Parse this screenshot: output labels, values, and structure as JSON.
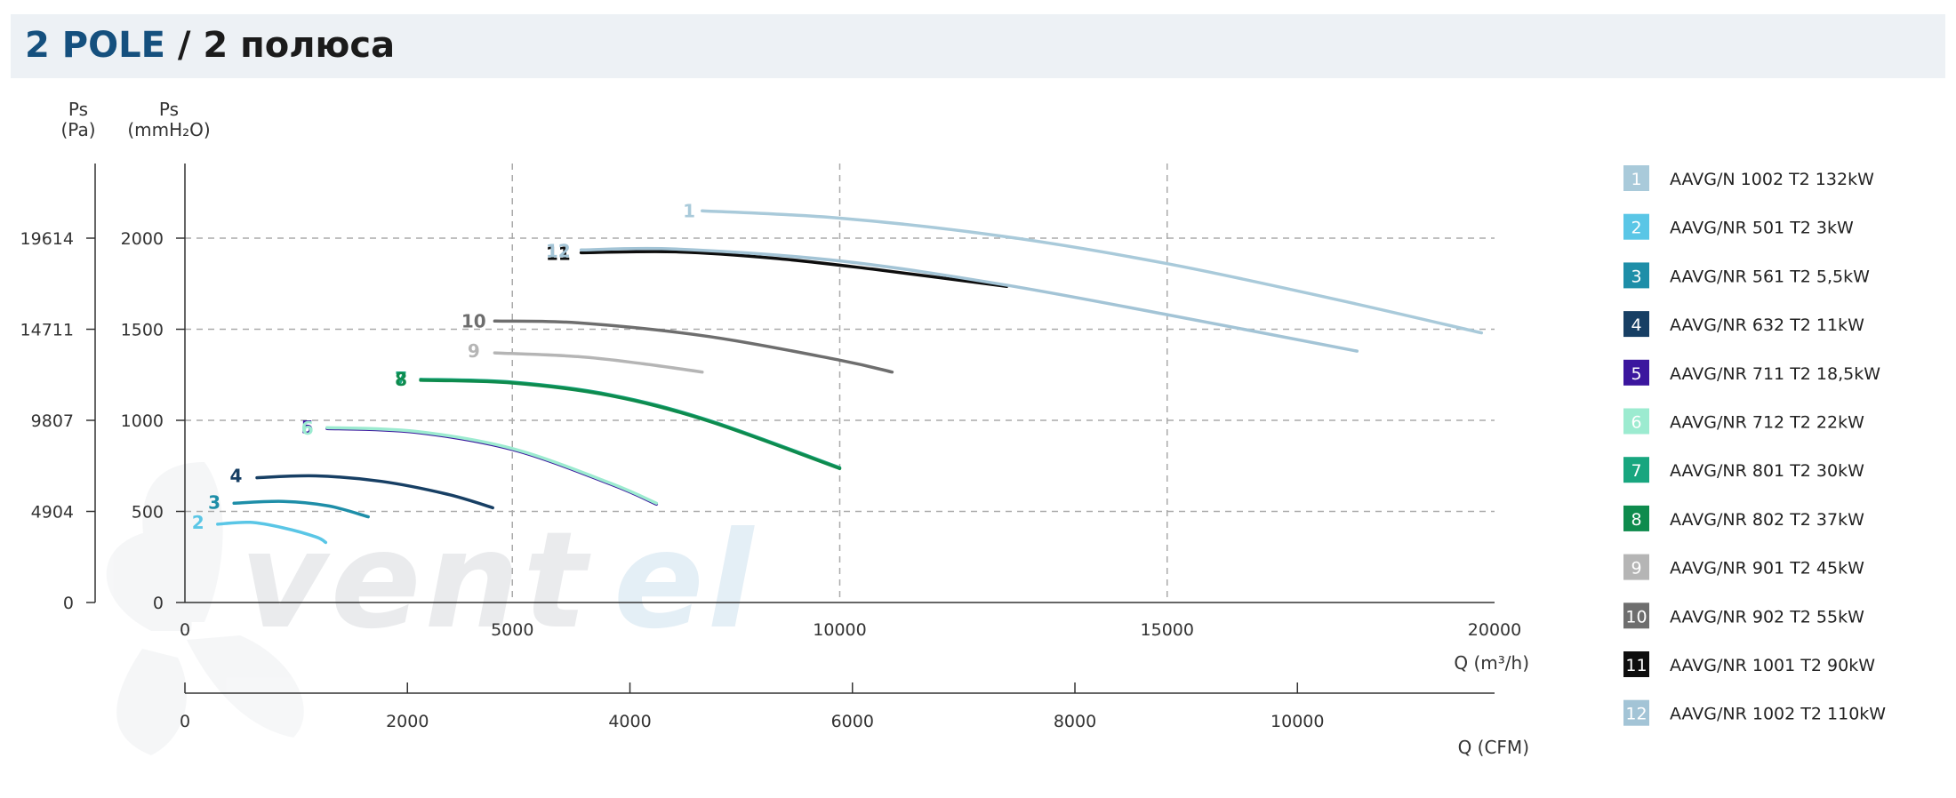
{
  "header": {
    "title_en": "2 POLE",
    "title_sep": " / ",
    "title_ru": "2 полюса"
  },
  "colors": {
    "header_bg": "#edf1f5",
    "header_accent": "#15507e",
    "grid": "#aaaaaa",
    "axis": "#333333"
  },
  "watermark": "ventel",
  "chart_data": {
    "type": "line",
    "x_axis": {
      "label": "Q (m³/h)",
      "ticks": [
        0,
        5000,
        10000,
        15000,
        20000
      ],
      "range": [
        0,
        20000
      ]
    },
    "x2_axis": {
      "label": "Q (CFM)",
      "ticks": [
        0,
        2000,
        4000,
        6000,
        8000,
        10000
      ],
      "range": [
        0,
        11772
      ]
    },
    "y_axis": {
      "label": "Ps (mmH₂O)",
      "label_top": "Ps",
      "label_unit": "(mmH₂O)",
      "ticks": [
        0,
        500,
        1000,
        1500,
        2000
      ],
      "range": [
        0,
        2400
      ]
    },
    "y2_axis": {
      "label": "Ps (Pa)",
      "label_top": "Ps",
      "label_unit": "(Pa)",
      "ticks": [
        "0",
        "4904",
        "9807",
        "14711",
        "19614"
      ],
      "tick_values": [
        0,
        500,
        1000,
        1500,
        2000
      ]
    },
    "grid": {
      "vertical": [
        5000,
        10000,
        15000
      ],
      "horizontal": [
        500,
        1000,
        1500,
        2000
      ],
      "style": "dashed"
    },
    "series": [
      {
        "id": "1",
        "name": "AAVG/N 1002 T2 132kW",
        "color": "#a9cada",
        "label_x": 7700,
        "label_y": 2150,
        "x": [
          7900,
          10000,
          12500,
          15000,
          17500,
          19800
        ],
        "y": [
          2150,
          2110,
          2010,
          1860,
          1670,
          1480
        ]
      },
      {
        "id": "2",
        "name": "AAVG/NR 501 T2 3kW",
        "color": "#5ac6e6",
        "label_x": 200,
        "label_y": 440,
        "x": [
          500,
          1000,
          1500,
          2000,
          2150
        ],
        "y": [
          430,
          440,
          410,
          360,
          330
        ]
      },
      {
        "id": "3",
        "name": "AAVG/NR 561 T2 5,5kW",
        "color": "#1e8ea8",
        "label_x": 450,
        "label_y": 550,
        "x": [
          750,
          1500,
          2200,
          2800
        ],
        "y": [
          545,
          555,
          530,
          470
        ]
      },
      {
        "id": "4",
        "name": "AAVG/NR 632 T2 11kW",
        "color": "#173f64",
        "label_x": 780,
        "label_y": 695,
        "x": [
          1100,
          2000,
          3000,
          4000,
          4700
        ],
        "y": [
          685,
          695,
          665,
          595,
          520
        ]
      },
      {
        "id": "5",
        "name": "AAVG/NR 711 T2 18,5kW",
        "color": "#3b169e",
        "label_x": 1870,
        "label_y": 960,
        "x": [
          2170,
          3500,
          5000,
          6500,
          7200
        ],
        "y": [
          955,
          935,
          840,
          650,
          540
        ]
      },
      {
        "id": "6",
        "name": "AAVG/NR 712 T2 22kW",
        "color": "#9cebd0",
        "label_x": 1870,
        "label_y": 955,
        "x": [
          2170,
          3500,
          5000,
          6500,
          7200
        ],
        "y": [
          960,
          940,
          845,
          655,
          545
        ]
      },
      {
        "id": "7",
        "name": "AAVG/NR 801 T2 30kW",
        "color": "#18a67f",
        "label_x": 3300,
        "label_y": 1230,
        "x": [
          3600,
          5000,
          6500,
          8000,
          10000
        ],
        "y": [
          1225,
          1210,
          1140,
          1000,
          740
        ]
      },
      {
        "id": "8",
        "name": "AAVG/NR 802 T2 37kW",
        "color": "#0e8b4d",
        "label_x": 3300,
        "label_y": 1225,
        "x": [
          3600,
          5000,
          6500,
          8000,
          10000
        ],
        "y": [
          1220,
          1205,
          1135,
          995,
          735
        ]
      },
      {
        "id": "9",
        "name": "AAVG/NR 901 T2 45kW",
        "color": "#b5b5b5",
        "label_x": 4410,
        "label_y": 1380,
        "x": [
          4730,
          6000,
          7000,
          7900
        ],
        "y": [
          1370,
          1350,
          1310,
          1265
        ]
      },
      {
        "id": "10",
        "name": "AAVG/NR 902 T2 55kW",
        "color": "#6e6e6e",
        "label_x": 4410,
        "label_y": 1545,
        "x": [
          4730,
          6000,
          8000,
          10000,
          10800
        ],
        "y": [
          1545,
          1535,
          1460,
          1330,
          1265
        ]
      },
      {
        "id": "11",
        "name": "AAVG/NR 1001 T2 90kW",
        "color": "#0e0e0e",
        "label_x": 5700,
        "label_y": 1915,
        "x": [
          6050,
          7500,
          9000,
          10500,
          12550
        ],
        "y": [
          1920,
          1925,
          1890,
          1830,
          1735
        ]
      },
      {
        "id": "12",
        "name": "AAVG/NR 1002 T2 110kW",
        "color": "#a3c4d6",
        "label_x": 5700,
        "label_y": 1930,
        "x": [
          6050,
          7500,
          10000,
          12500,
          15000,
          17900
        ],
        "y": [
          1935,
          1940,
          1875,
          1745,
          1580,
          1380
        ]
      }
    ]
  }
}
